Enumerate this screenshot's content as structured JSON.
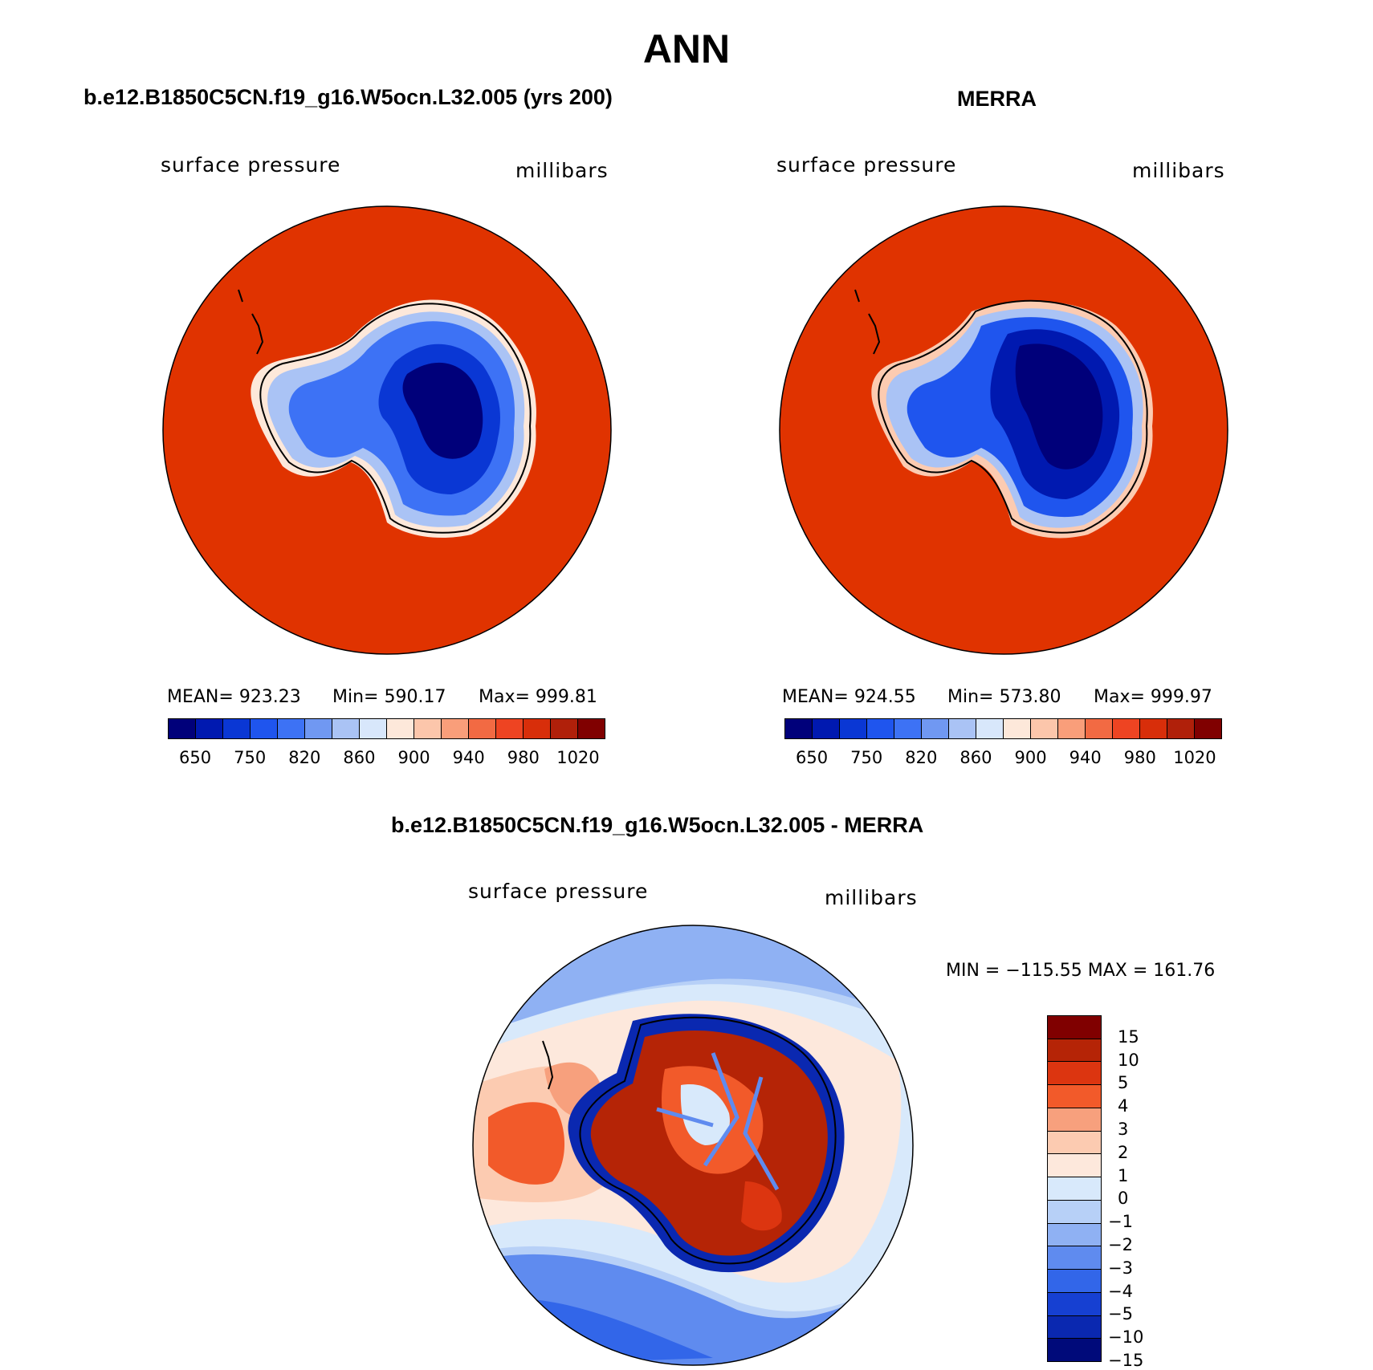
{
  "figure": {
    "title": "ANN",
    "bottom_title": "b.e12.B1850C5CN.f19_g16.W5ocn.L32.005 - MERRA"
  },
  "panels": [
    {
      "title": "b.e12.B1850C5CN.f19_g16.W5ocn.L32.005 (yrs 200)",
      "variable": "surface pressure",
      "units": "millibars",
      "mean": "MEAN= 923.23",
      "min": "Min= 590.17",
      "max": "Max= 999.81"
    },
    {
      "title": "MERRA",
      "variable": "surface pressure",
      "units": "millibars",
      "mean": "MEAN= 924.55",
      "min": "Min= 573.80",
      "max": "Max= 999.97"
    }
  ],
  "diff_panel": {
    "variable": "surface pressure",
    "units": "millibars",
    "minmax": "MIN = −115.55 MAX = 161.76"
  },
  "colorbar_main": {
    "colors": [
      "#00007a",
      "#0019b0",
      "#0a37d4",
      "#1f55ee",
      "#3d72f5",
      "#7098f2",
      "#aac3f5",
      "#d8e7fb",
      "#fde8da",
      "#fcc6ab",
      "#f99e7a",
      "#f26a43",
      "#ee4422",
      "#d82e0a",
      "#b0200a",
      "#800000"
    ],
    "tick_labels": [
      "650",
      "750",
      "820",
      "860",
      "900",
      "940",
      "980",
      "1020"
    ]
  },
  "colorbar_diff": {
    "colors": [
      "#800000",
      "#b52406",
      "#dc3510",
      "#f25a2a",
      "#f7a07d",
      "#fccbb1",
      "#fde8dc",
      "#d8e9fb",
      "#b7d0f7",
      "#8fb1f3",
      "#5f8bef",
      "#3266e9",
      "#1640d2",
      "#0a28b0",
      "#000a7a"
    ],
    "tick_labels": [
      "15",
      "10",
      "5",
      "4",
      "3",
      "2",
      "1",
      "0",
      "−1",
      "−2",
      "−3",
      "−4",
      "−5",
      "−10",
      "−15"
    ]
  },
  "map_colors": {
    "ocean": "#e03300",
    "diff_pos_strong": "#b01e08",
    "diff_neg_strong": "#0a23a8"
  }
}
